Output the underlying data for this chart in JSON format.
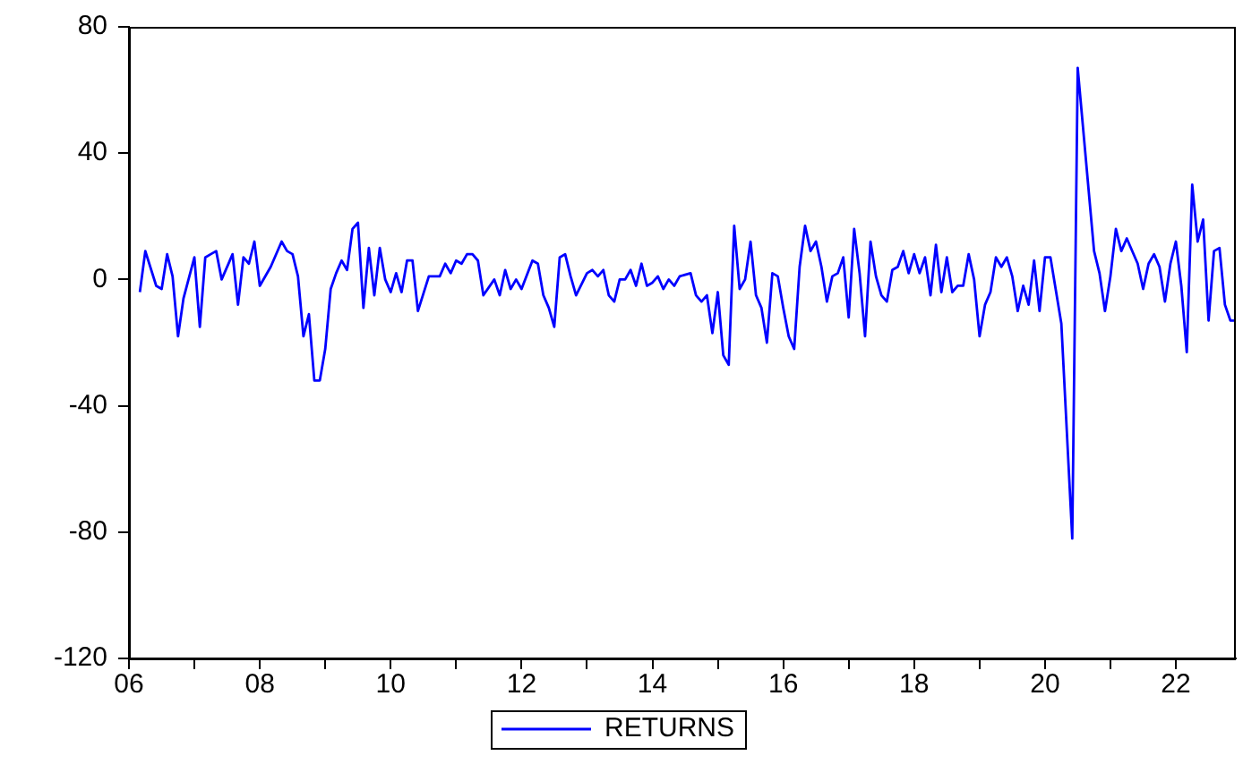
{
  "chart_data": {
    "type": "line",
    "x": [
      "2006-03",
      "2006-04",
      "2006-06",
      "2006-07",
      "2006-08",
      "2006-09",
      "2006-10",
      "2006-11",
      "2007-01",
      "2007-02",
      "2007-03",
      "2007-04",
      "2007-05",
      "2007-06",
      "2007-08",
      "2007-09",
      "2007-10",
      "2007-11",
      "2007-12",
      "2008-01",
      "2008-03",
      "2008-05",
      "2008-06",
      "2008-07",
      "2008-08",
      "2008-09",
      "2008-10",
      "2008-11",
      "2008-12",
      "2009-01",
      "2009-02",
      "2009-03",
      "2009-04",
      "2009-05",
      "2009-06",
      "2009-07",
      "2009-08",
      "2009-09",
      "2009-10",
      "2009-11",
      "2009-12",
      "2010-01",
      "2010-02",
      "2010-03",
      "2010-04",
      "2010-05",
      "2010-06",
      "2010-08",
      "2010-10",
      "2010-11",
      "2010-12",
      "2011-01",
      "2011-02",
      "2011-03",
      "2011-04",
      "2011-05",
      "2011-06",
      "2011-08",
      "2011-09",
      "2011-10",
      "2011-11",
      "2011-12",
      "2012-01",
      "2012-03",
      "2012-04",
      "2012-05",
      "2012-06",
      "2012-07",
      "2012-08",
      "2012-09",
      "2012-10",
      "2012-11",
      "2013-01",
      "2013-02",
      "2013-03",
      "2013-04",
      "2013-05",
      "2013-06",
      "2013-07",
      "2013-08",
      "2013-09",
      "2013-10",
      "2013-11",
      "2013-12",
      "2014-01",
      "2014-02",
      "2014-03",
      "2014-04",
      "2014-05",
      "2014-06",
      "2014-08",
      "2014-09",
      "2014-10",
      "2014-11",
      "2014-12",
      "2015-01",
      "2015-02",
      "2015-03",
      "2015-04",
      "2015-05",
      "2015-06",
      "2015-07",
      "2015-08",
      "2015-09",
      "2015-10",
      "2015-11",
      "2015-12",
      "2016-01",
      "2016-02",
      "2016-03",
      "2016-04",
      "2016-05",
      "2016-06",
      "2016-07",
      "2016-08",
      "2016-09",
      "2016-10",
      "2016-11",
      "2016-12",
      "2017-01",
      "2017-02",
      "2017-03",
      "2017-04",
      "2017-05",
      "2017-06",
      "2017-07",
      "2017-08",
      "2017-09",
      "2017-10",
      "2017-11",
      "2017-12",
      "2018-01",
      "2018-02",
      "2018-03",
      "2018-04",
      "2018-05",
      "2018-06",
      "2018-07",
      "2018-08",
      "2018-09",
      "2018-10",
      "2018-11",
      "2018-12",
      "2019-01",
      "2019-02",
      "2019-03",
      "2019-04",
      "2019-05",
      "2019-06",
      "2019-07",
      "2019-08",
      "2019-09",
      "2019-10",
      "2019-11",
      "2019-12",
      "2020-01",
      "2020-02",
      "2020-04",
      "2020-06",
      "2020-07",
      "2020-10",
      "2020-11",
      "2020-12",
      "2021-01",
      "2021-02",
      "2021-03",
      "2021-04",
      "2021-06",
      "2021-07",
      "2021-08",
      "2021-09",
      "2021-10",
      "2021-11",
      "2021-12",
      "2022-01",
      "2022-02",
      "2022-03",
      "2022-04",
      "2022-05",
      "2022-06",
      "2022-07",
      "2022-08",
      "2022-09",
      "2022-10",
      "2022-11",
      "2022-12"
    ],
    "series": [
      {
        "name": "RETURNS",
        "color": "#0000ff",
        "values": [
          -4,
          9,
          -2,
          -3,
          8,
          1,
          -18,
          -6,
          7,
          -15,
          7,
          8,
          9,
          0,
          8,
          -8,
          7,
          5,
          12,
          -2,
          4,
          12,
          9,
          8,
          1,
          -18,
          -11,
          -32,
          -32,
          -22,
          -3,
          2,
          6,
          3,
          16,
          18,
          -9,
          10,
          -5,
          10,
          0,
          -4,
          2,
          -4,
          6,
          6,
          -10,
          1,
          1,
          5,
          2,
          6,
          5,
          8,
          8,
          6,
          -5,
          0,
          -5,
          3,
          -3,
          0,
          -3,
          6,
          5,
          -5,
          -9,
          -15,
          7,
          8,
          1,
          -5,
          2,
          3,
          1,
          3,
          -5,
          -7,
          0,
          0,
          3,
          -2,
          5,
          -2,
          -1,
          1,
          -3,
          0,
          -2,
          1,
          2,
          -5,
          -7,
          -5,
          -17,
          -4,
          -24,
          -27,
          17,
          -3,
          0,
          12,
          -5,
          -9,
          -20,
          2,
          1,
          -9,
          -18,
          -22,
          4,
          17,
          9,
          12,
          4,
          -7,
          1,
          2,
          7,
          -12,
          16,
          2,
          -18,
          12,
          1,
          -5,
          -7,
          3,
          4,
          9,
          2,
          8,
          2,
          7,
          -5,
          11,
          -4,
          7,
          -4,
          -2,
          -2,
          8,
          0,
          -18,
          -8,
          -4,
          7,
          4,
          7,
          1,
          -10,
          -2,
          -8,
          6,
          -10,
          7,
          7,
          -14,
          -82,
          67,
          9,
          2,
          -10,
          1,
          16,
          9,
          13,
          5,
          -3,
          5,
          8,
          4,
          -7,
          5,
          12,
          -2,
          -23,
          30,
          12,
          19,
          -13,
          9,
          10,
          -8,
          -13,
          -13
        ]
      }
    ],
    "xlim": [
      "2006-01",
      "2022-12"
    ],
    "xticks": [
      {
        "value": "2006",
        "label": "06"
      },
      {
        "value": "2007",
        "label": null
      },
      {
        "value": "2008",
        "label": "08"
      },
      {
        "value": "2009",
        "label": null
      },
      {
        "value": "2010",
        "label": "10"
      },
      {
        "value": "2011",
        "label": null
      },
      {
        "value": "2012",
        "label": "12"
      },
      {
        "value": "2013",
        "label": null
      },
      {
        "value": "2014",
        "label": "14"
      },
      {
        "value": "2015",
        "label": null
      },
      {
        "value": "2016",
        "label": "16"
      },
      {
        "value": "2017",
        "label": null
      },
      {
        "value": "2018",
        "label": "18"
      },
      {
        "value": "2019",
        "label": null
      },
      {
        "value": "2020",
        "label": "20"
      },
      {
        "value": "2021",
        "label": null
      },
      {
        "value": "2022",
        "label": "22"
      }
    ],
    "ylim": [
      -120,
      80
    ],
    "yticks": [
      -120,
      -80,
      -40,
      0,
      40,
      80
    ],
    "grid": false,
    "legend": "bottom",
    "marker": "none"
  }
}
